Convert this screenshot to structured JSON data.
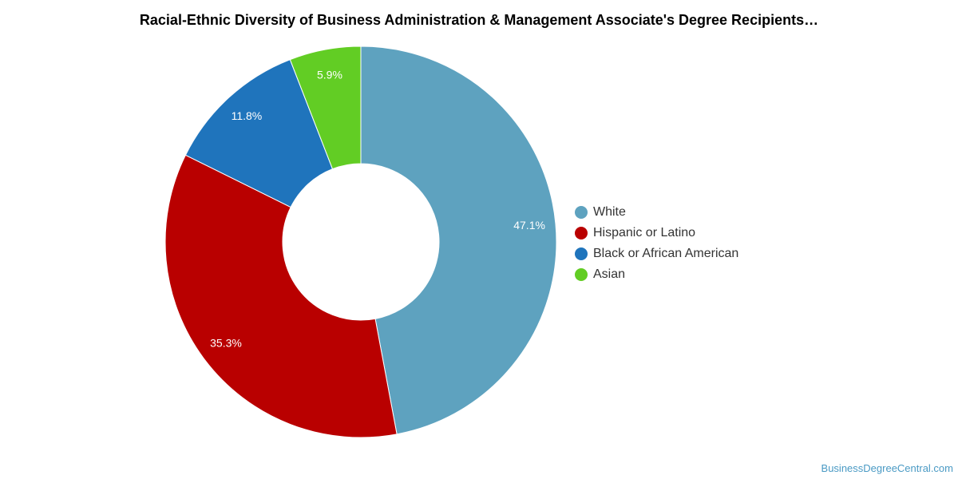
{
  "chart_data": {
    "type": "pie",
    "variant": "donut",
    "title": "Racial-Ethnic Diversity of Business Administration & Management Associate's Degree Recipients…",
    "categories": [
      "White",
      "Hispanic or Latino",
      "Black or African American",
      "Asian"
    ],
    "values": [
      47.1,
      35.3,
      11.8,
      5.9
    ],
    "value_labels": [
      "47.1%",
      "35.3%",
      "11.8%",
      "5.9%"
    ],
    "colors": [
      "#5ea2bf",
      "#b90000",
      "#1f74bc",
      "#62cd24"
    ],
    "legend_position": "right"
  },
  "watermark": "BusinessDegreeCentral.com"
}
